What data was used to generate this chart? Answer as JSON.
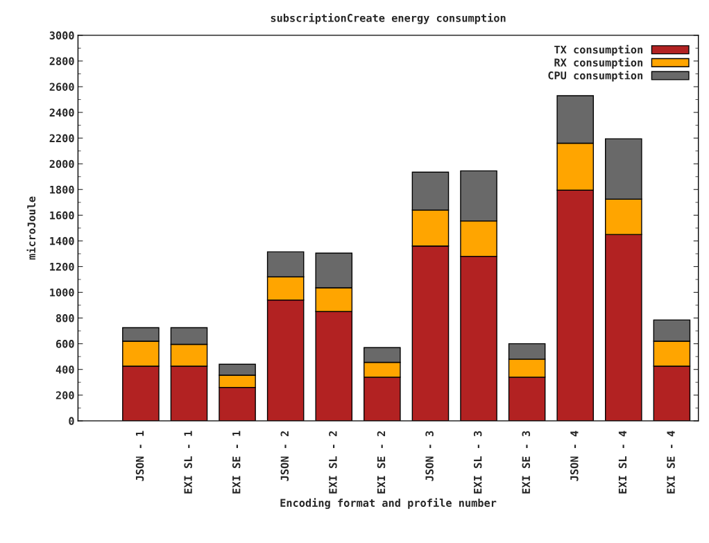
{
  "chart_data": {
    "type": "bar",
    "title": "subscriptionCreate energy consumption",
    "xlabel": "Encoding format and profile number",
    "ylabel": "microJoule",
    "categories": [
      "JSON - 1",
      "EXI SL - 1",
      "EXI SE - 1",
      "JSON - 2",
      "EXI SL - 2",
      "EXI SE - 2",
      "JSON - 3",
      "EXI SL - 3",
      "EXI SE - 3",
      "JSON - 4",
      "EXI SL - 4",
      "EXI SE - 4"
    ],
    "stacked": true,
    "series": [
      {
        "name": "TX consumption",
        "color": "#b22222",
        "values": [
          425,
          425,
          260,
          940,
          850,
          340,
          1360,
          1280,
          340,
          1795,
          1450,
          425
        ]
      },
      {
        "name": "RX consumption",
        "color": "#ffa500",
        "values": [
          195,
          170,
          95,
          180,
          185,
          115,
          280,
          275,
          140,
          365,
          275,
          195
        ]
      },
      {
        "name": "CPU consumption",
        "color": "#696969",
        "values": [
          105,
          130,
          85,
          195,
          270,
          115,
          295,
          390,
          120,
          370,
          470,
          165
        ]
      }
    ],
    "ylim": [
      0,
      3000
    ],
    "yticks": [
      0,
      200,
      400,
      600,
      800,
      1000,
      1200,
      1400,
      1600,
      1800,
      2000,
      2200,
      2400,
      2600,
      2800,
      3000
    ],
    "grid": false,
    "legend": "top right"
  }
}
